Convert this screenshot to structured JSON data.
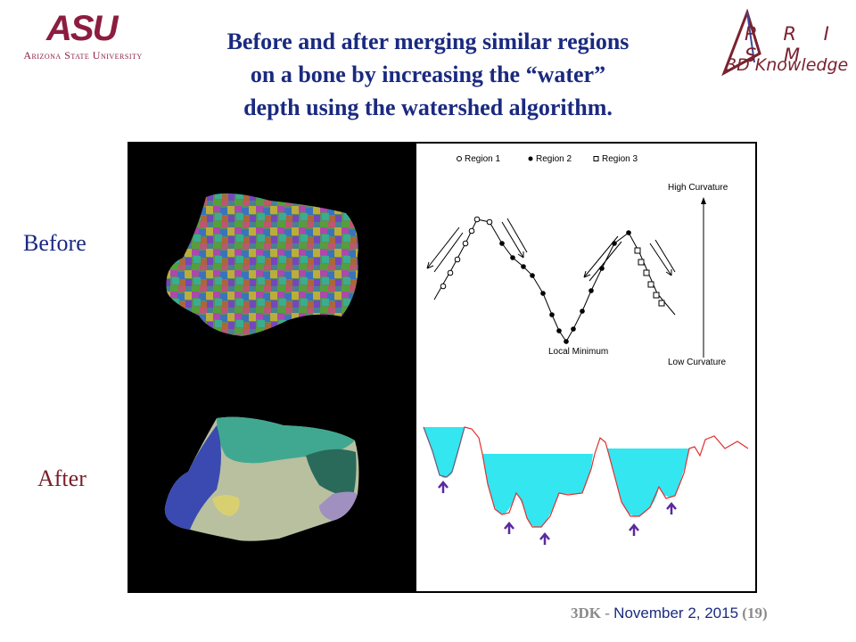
{
  "header": {
    "asu_mark": "ASU",
    "asu_name": "Arizona State University",
    "title_lines": [
      "Before and after merging similar regions",
      "on a bone by increasing the “water”",
      "depth using the watershed algorithm."
    ],
    "prism_logo": "P R I S M",
    "prism_sub": "3D Knowledge"
  },
  "labels": {
    "before": "Before",
    "after": "After"
  },
  "diagram": {
    "legend": [
      "Region 1",
      "Region 2",
      "Region 3"
    ],
    "high_curvature": "High Curvature",
    "low_curvature": "Low Curvature",
    "local_minimum": "Local Minimum"
  },
  "footer": {
    "brand": "3DK",
    "separator": " - ",
    "date": "November 2, 2015",
    "page": "(19)"
  },
  "colors": {
    "title": "#1a2a80",
    "asu_maroon": "#8c1d40",
    "water": "#33e6f0",
    "curve": "#e03030",
    "arrow": "#5a2aa0"
  }
}
